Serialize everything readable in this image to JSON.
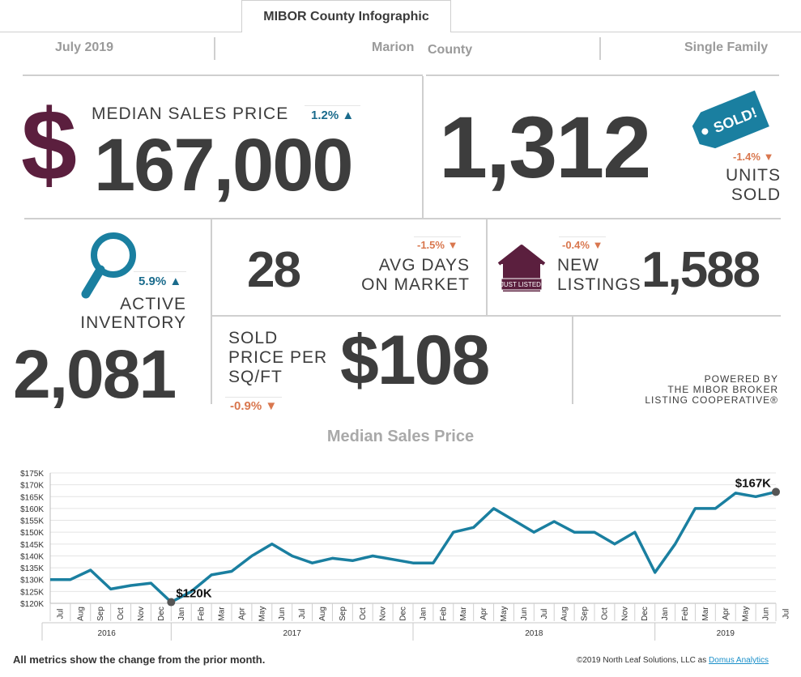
{
  "header": {
    "tab_label": "MIBOR County Infographic"
  },
  "filters": {
    "period": "July  2019",
    "area_1": "Marion",
    "area_2": "County",
    "property_type": "Single Family"
  },
  "median_sales_price": {
    "symbol": "$",
    "label": "MEDIAN SALES PRICE",
    "value": "167,000",
    "change": "1.2%",
    "direction": "up"
  },
  "units_sold": {
    "value": "1,312",
    "label_1": "UNITS",
    "label_2": "SOLD",
    "change": "-1.4%",
    "direction": "down",
    "tag_text": "SOLD!"
  },
  "active_inventory": {
    "label_1": "ACTIVE",
    "label_2": "INVENTORY",
    "value": "2,081",
    "change": "5.9%",
    "direction": "up"
  },
  "avg_days": {
    "value": "28",
    "label_1": "AVG DAYS",
    "label_2": "ON MARKET",
    "change": "-1.5%",
    "direction": "down"
  },
  "new_listings": {
    "label_1": "NEW",
    "label_2": "LISTINGS",
    "value": "1,588",
    "change": "-0.4%",
    "direction": "down",
    "sign_text": "JUST LISTED!"
  },
  "price_per_sqft": {
    "label_1": "SOLD",
    "label_2": "PRICE PER",
    "label_3": "SQ/FT",
    "value": "$108",
    "change": "-0.9%",
    "direction": "down"
  },
  "powered_by": {
    "line_1": "POWERED BY",
    "line_2": "THE MIBOR BROKER",
    "line_3": "LISTING COOPERATIVE®"
  },
  "colors": {
    "accent_teal": "#1a7fa0",
    "maroon": "#5b1f3e",
    "up": "#1a6b8c",
    "down": "#d9774e"
  },
  "chart_data": {
    "type": "line",
    "title": "Median Sales Price",
    "y_ticks": [
      "$120K",
      "$125K",
      "$130K",
      "$135K",
      "$140K",
      "$145K",
      "$150K",
      "$155K",
      "$160K",
      "$165K",
      "$170K",
      "$175K"
    ],
    "ylim": [
      120,
      175
    ],
    "months": [
      "Jul",
      "Aug",
      "Sep",
      "Oct",
      "Nov",
      "Dec",
      "Jan",
      "Feb",
      "Mar",
      "Apr",
      "May",
      "Jun",
      "Jul",
      "Aug",
      "Sep",
      "Oct",
      "Nov",
      "Dec",
      "Jan",
      "Feb",
      "Mar",
      "Apr",
      "May",
      "Jun",
      "Jul",
      "Aug",
      "Sep",
      "Oct",
      "Nov",
      "Dec",
      "Jan",
      "Feb",
      "Mar",
      "Apr",
      "May",
      "Jun",
      "Jul"
    ],
    "years": [
      {
        "label": "2016",
        "start": 0,
        "end": 6
      },
      {
        "label": "2017",
        "start": 6,
        "end": 18
      },
      {
        "label": "2018",
        "start": 18,
        "end": 30
      },
      {
        "label": "2019",
        "start": 30,
        "end": 37
      }
    ],
    "values": [
      130,
      130,
      134,
      126,
      127.5,
      128.5,
      120.5,
      125,
      132,
      133.5,
      140,
      145,
      140,
      137,
      139,
      138,
      140,
      138.5,
      137,
      137,
      150,
      152,
      160,
      155,
      150,
      154.5,
      150,
      150,
      145,
      150,
      133,
      145,
      160,
      160,
      166.5,
      165,
      167
    ],
    "annotations": [
      {
        "index": 6,
        "label": "$120K"
      },
      {
        "index": 36,
        "label": "$167K"
      }
    ],
    "series_color": "#1a7fa0"
  },
  "footer": {
    "note": "All metrics show the change from the prior month.",
    "copyright_text": "©2019  North Leaf Solutions, LLC as ",
    "copyright_link": "Domus Analytics"
  }
}
